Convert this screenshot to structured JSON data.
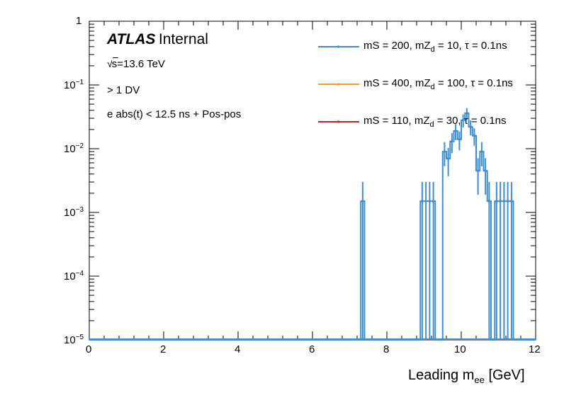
{
  "chart_data": {
    "type": "histogram",
    "title": "",
    "xlabel_main": "Leading m",
    "xlabel_sub": "ee",
    "xlabel_unit": "[GeV]",
    "ylabel": "",
    "xlim": [
      0,
      12
    ],
    "ylim_log10": [
      -5,
      0
    ],
    "yscale": "log",
    "x_ticks": [
      "0",
      "2",
      "4",
      "6",
      "8",
      "10",
      "12"
    ],
    "y_ticks": [
      {
        "base": "1",
        "exp": ""
      },
      {
        "base": "10",
        "exp": "−1"
      },
      {
        "base": "10",
        "exp": "−2"
      },
      {
        "base": "10",
        "exp": "−3"
      },
      {
        "base": "10",
        "exp": "−4"
      },
      {
        "base": "10",
        "exp": "−5"
      }
    ],
    "bin_width": 0.1,
    "series": [
      {
        "name": "mS = 200, mZd = 10, τ = 0.1ns",
        "color": "#3f8fd2",
        "bins": [
          {
            "x": 7.3,
            "y": 0.0015,
            "err": 0.0015
          },
          {
            "x": 8.9,
            "y": 0.0015,
            "err": 0.0015
          },
          {
            "x": 9.0,
            "y": 0.0015,
            "err": 0.0015
          },
          {
            "x": 9.1,
            "y": 0.0015,
            "err": 0.0015
          },
          {
            "x": 9.2,
            "y": 0.0015,
            "err": 0.0015
          },
          {
            "x": 9.5,
            "y": 0.009,
            "err": 0.0037
          },
          {
            "x": 9.6,
            "y": 0.007,
            "err": 0.0033
          },
          {
            "x": 9.7,
            "y": 0.013,
            "err": 0.0045
          },
          {
            "x": 9.8,
            "y": 0.019,
            "err": 0.0054
          },
          {
            "x": 9.9,
            "y": 0.014,
            "err": 0.0046
          },
          {
            "x": 10.0,
            "y": 0.028,
            "err": 0.0065
          },
          {
            "x": 10.1,
            "y": 0.036,
            "err": 0.0074
          },
          {
            "x": 10.2,
            "y": 0.022,
            "err": 0.0058
          },
          {
            "x": 10.3,
            "y": 0.016,
            "err": 0.0049
          },
          {
            "x": 10.4,
            "y": 0.0045,
            "err": 0.0026
          },
          {
            "x": 10.5,
            "y": 0.009,
            "err": 0.0037
          },
          {
            "x": 10.6,
            "y": 0.0045,
            "err": 0.0026
          },
          {
            "x": 10.7,
            "y": 0.0015,
            "err": 0.0015
          },
          {
            "x": 10.9,
            "y": 0.0015,
            "err": 0.0015
          },
          {
            "x": 11.0,
            "y": 0.0015,
            "err": 0.0015
          },
          {
            "x": 11.1,
            "y": 0.0015,
            "err": 0.0015
          },
          {
            "x": 11.2,
            "y": 0.0015,
            "err": 0.0015
          },
          {
            "x": 11.3,
            "y": 0.0015,
            "err": 0.0015
          }
        ]
      },
      {
        "name": "mS = 400, mZd = 100, τ = 0.1ns",
        "color": "#f0a020",
        "bins": []
      },
      {
        "name": "mS = 110, mZd = 30, τ = 0.1ns",
        "color": "#c0281c",
        "bins": []
      }
    ],
    "legend_position": "top-right",
    "legend": [
      {
        "pre": "mS = 200, mZ",
        "sub": "d",
        "post": " = 10, τ = 0.1ns"
      },
      {
        "pre": "mS = 400, mZ",
        "sub": "d",
        "post": " = 100, τ = 0.1ns"
      },
      {
        "pre": "mS = 110, mZ",
        "sub": "d",
        "post": " = 30, τ = 0.1ns"
      }
    ],
    "annotations": {
      "atlas": "ATLAS",
      "internal": "Internal",
      "sqrt_symbol": "√",
      "energy": "s=13.6 TeV",
      "selection1": "> 1 DV",
      "selection2": "e abs(t) < 12.5 ns + Pos-pos"
    }
  }
}
